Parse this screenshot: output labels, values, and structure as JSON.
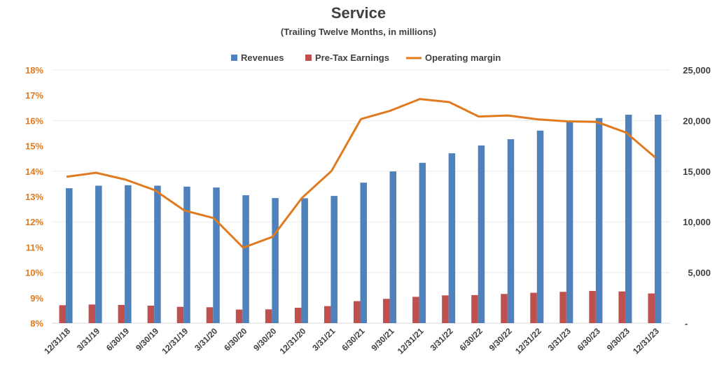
{
  "chart_data": {
    "type": "bar",
    "title": "Service",
    "subtitle": "(Trailing Twelve Months, in millions)",
    "categories": [
      "12/31/18",
      "3/31/19",
      "6/30/19",
      "9/30/19",
      "12/31/19",
      "3/31/20",
      "6/30/20",
      "9/30/20",
      "12/31/20",
      "3/31/21",
      "6/30/21",
      "9/30/21",
      "12/31/21",
      "3/31/22",
      "6/30/22",
      "9/30/22",
      "12/31/22",
      "3/31/23",
      "6/30/23",
      "9/30/23",
      "12/31/23"
    ],
    "series": [
      {
        "name": "Revenues",
        "type": "bar",
        "axis": "right",
        "color": "#4f81bd",
        "values": [
          13320,
          13570,
          13620,
          13570,
          13480,
          13390,
          12630,
          12350,
          12330,
          12560,
          13870,
          14980,
          15830,
          16770,
          17540,
          18160,
          19010,
          19900,
          20250,
          20580,
          20580
        ]
      },
      {
        "name": "Pre-Tax Earnings",
        "type": "bar",
        "axis": "right",
        "color": "#c0504d",
        "values": [
          1770,
          1840,
          1800,
          1730,
          1610,
          1570,
          1340,
          1360,
          1520,
          1680,
          2170,
          2400,
          2600,
          2740,
          2770,
          2880,
          3000,
          3090,
          3180,
          3130,
          2930
        ]
      },
      {
        "name": "Operating margin",
        "type": "line",
        "axis": "left",
        "color": "#e07a1f",
        "values": [
          13.78,
          13.94,
          13.67,
          13.25,
          12.45,
          12.15,
          10.98,
          11.41,
          12.95,
          14.01,
          16.06,
          16.39,
          16.85,
          16.73,
          16.16,
          16.2,
          16.05,
          15.97,
          15.95,
          15.53,
          14.54
        ]
      }
    ],
    "left_axis": {
      "ylim": [
        8,
        18
      ],
      "ticks": [
        "8%",
        "9%",
        "10%",
        "11%",
        "12%",
        "13%",
        "14%",
        "15%",
        "16%",
        "17%",
        "18%"
      ]
    },
    "right_axis": {
      "ylim": [
        0,
        25000
      ],
      "ticks": [
        "-",
        "5,000",
        "10,000",
        "15,000",
        "20,000",
        "25,000"
      ]
    },
    "legend": "top-center",
    "grid": true
  }
}
